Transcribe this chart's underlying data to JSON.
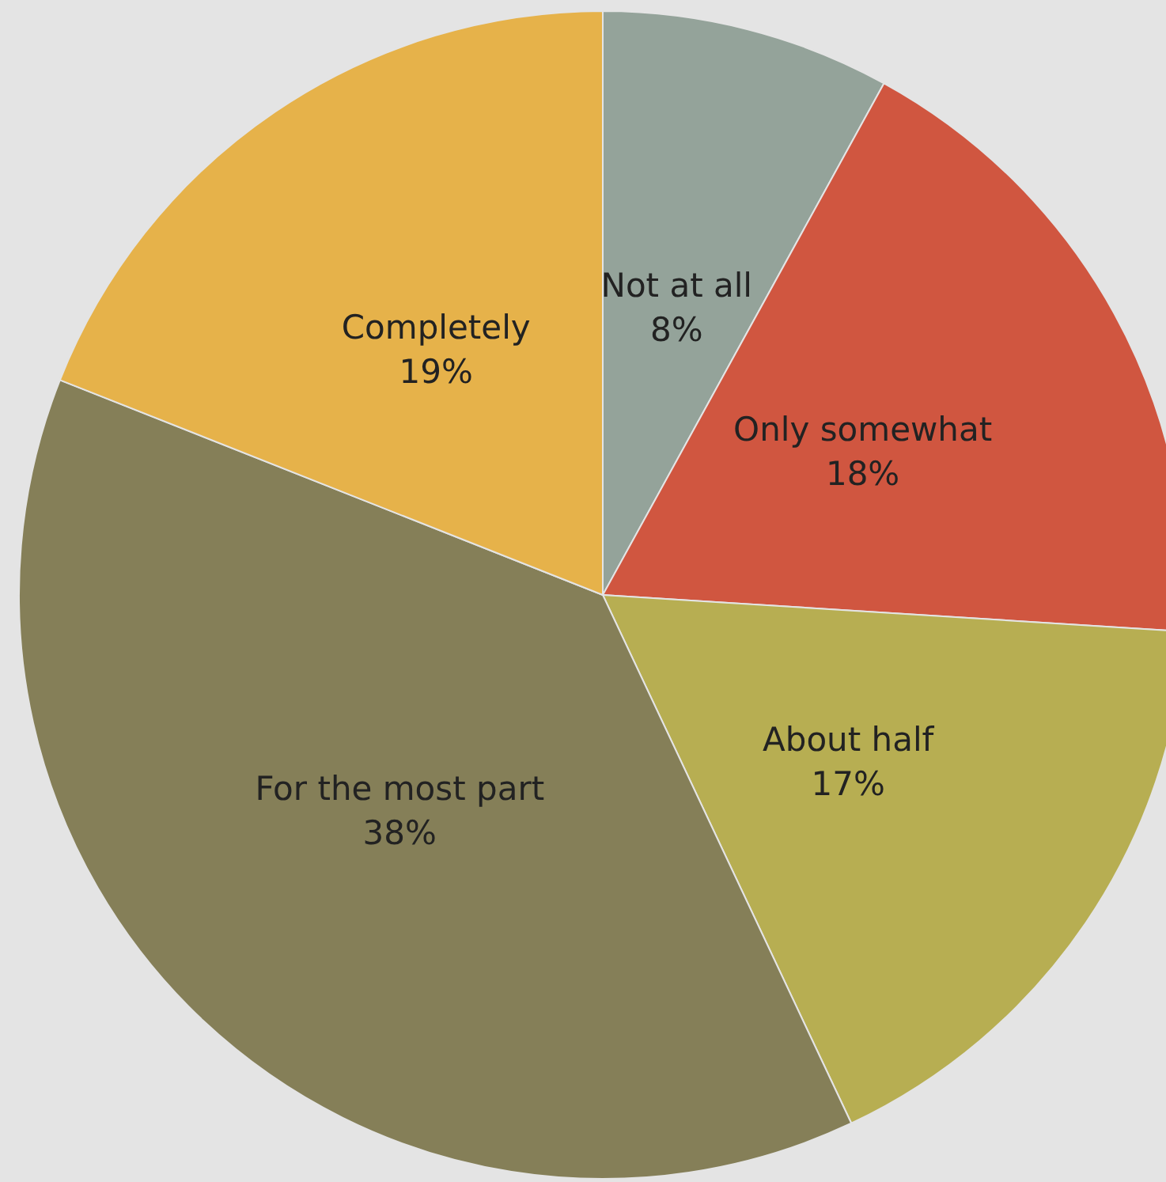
{
  "chart_data": {
    "type": "pie",
    "categories": [
      "Not at all",
      "Only somewhat",
      "About half",
      "For the most part",
      "Completely"
    ],
    "values": [
      8,
      18,
      17,
      38,
      19
    ],
    "value_labels": [
      "8%",
      "18%",
      "17%",
      "38%",
      "19%"
    ],
    "colors": [
      "#94a39a",
      "#d05640",
      "#b7ae52",
      "#857f58",
      "#e6b24a"
    ]
  }
}
